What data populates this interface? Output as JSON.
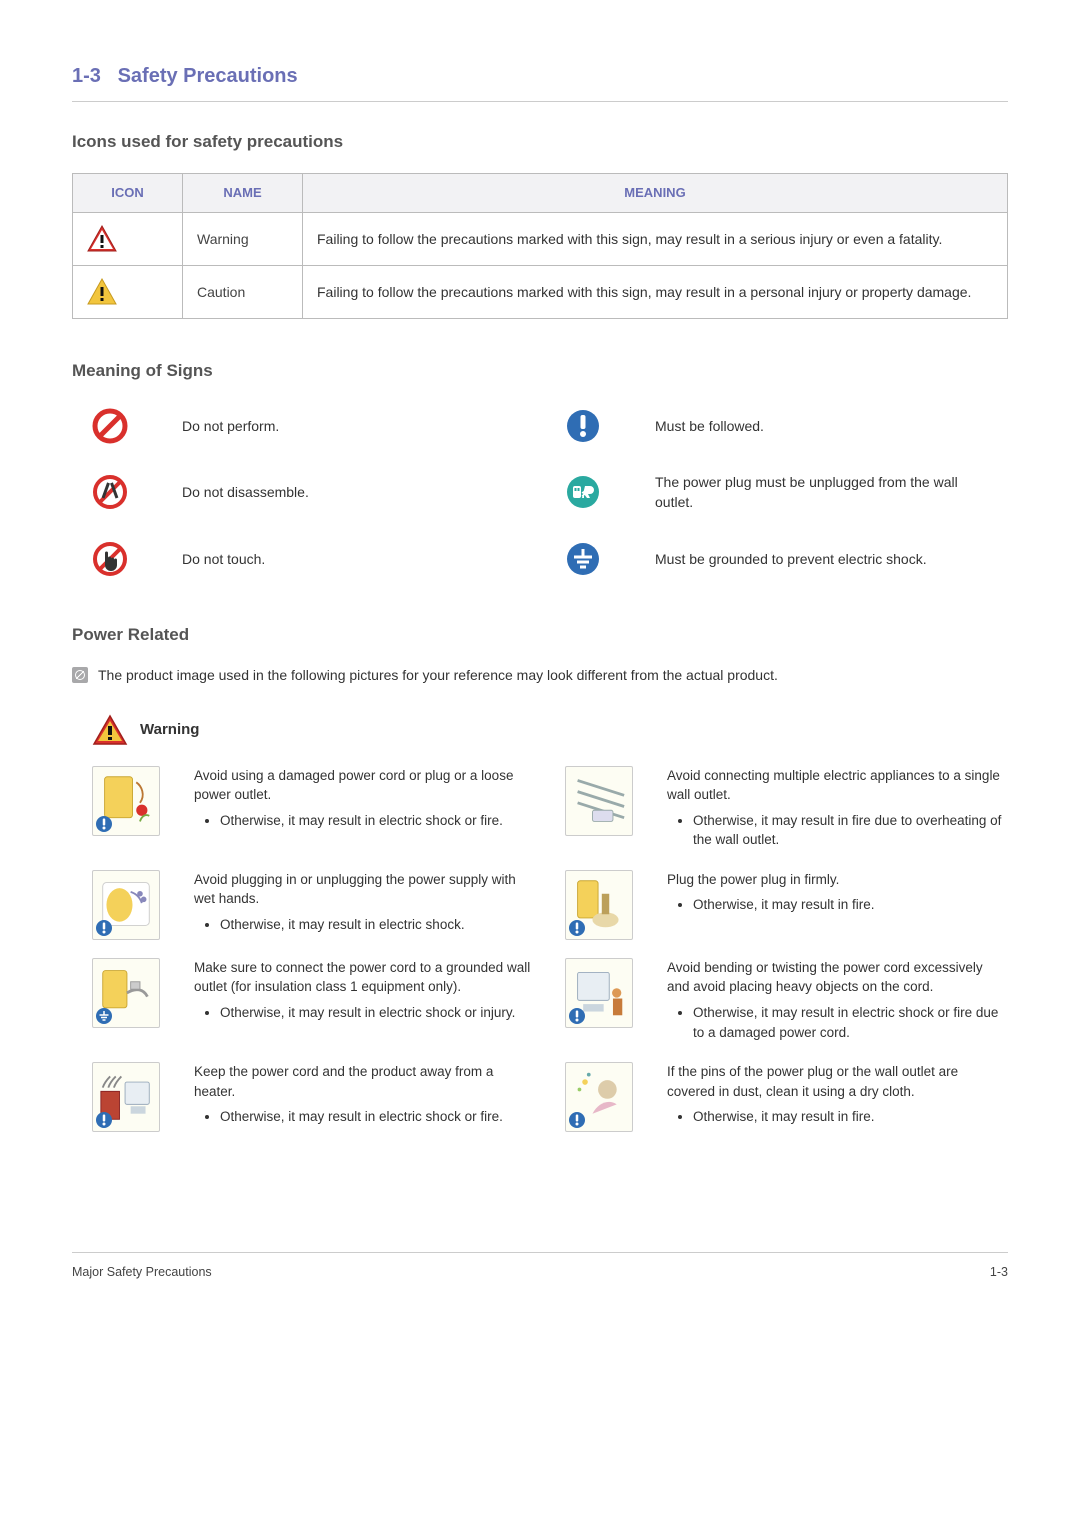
{
  "colors": {
    "heading": "#6a6fb5",
    "text": "#333333",
    "muted": "#555555",
    "border": "#bbbbbb",
    "th_bg": "#f2f2f4",
    "rule": "#cccccc",
    "warning_red": "#d9302c",
    "warning_yellow": "#f2c53d",
    "prohibit_red": "#d9302c",
    "must_blue": "#2f6db4",
    "unplug_teal": "#2aa9a0",
    "note_badge": "#a8a8aa",
    "page_bg": "#ffffff"
  },
  "page": {
    "section_number": "1-3",
    "section_title": "Safety Precautions",
    "icons_heading": "Icons used for safety precautions",
    "signs_heading": "Meaning of Signs",
    "power_heading": "Power Related",
    "note_text": "The product image used in the following pictures for your reference may look different from the actual product.",
    "warning_label": "Warning",
    "footer_left": "Major Safety Precautions",
    "footer_right": "1-3"
  },
  "table": {
    "headers": {
      "icon": "ICON",
      "name": "NAME",
      "meaning": "MEANING"
    },
    "rows": [
      {
        "icon": "warning-red",
        "name": "Warning",
        "meaning": "Failing to follow the precautions marked with this sign, may result in a serious injury or even a fatality."
      },
      {
        "icon": "warning-yellow",
        "name": "Caution",
        "meaning": "Failing to follow the precautions marked with this sign, may result in a personal injury or property damage."
      }
    ]
  },
  "signs": [
    {
      "icon": "prohibit",
      "text": "Do not perform."
    },
    {
      "icon": "must-follow",
      "text": "Must be followed."
    },
    {
      "icon": "no-disassemble",
      "text": "Do not disassemble."
    },
    {
      "icon": "unplug",
      "text": "The power plug must be unplugged from the wall outlet."
    },
    {
      "icon": "no-touch",
      "text": "Do not touch."
    },
    {
      "icon": "ground",
      "text": "Must be grounded to prevent electric shock."
    }
  ],
  "warnings": [
    {
      "badge": "must-follow",
      "main": "Avoid using a damaged power cord or plug or a loose power outlet.",
      "bullet": "Otherwise, it may result in electric shock or fire."
    },
    {
      "badge": null,
      "main": "Avoid connecting multiple electric appliances to a single wall outlet.",
      "bullet": "Otherwise, it may result in fire due to overheating of the wall outlet."
    },
    {
      "badge": "must-follow",
      "main": "Avoid plugging in or unplugging the power supply with wet hands.",
      "bullet": "Otherwise, it may result in electric shock."
    },
    {
      "badge": "must-follow",
      "main": "Plug the power plug in firmly.",
      "bullet": "Otherwise, it may result in fire."
    },
    {
      "badge": "ground",
      "main": "Make sure to connect the power cord to a grounded wall outlet (for insulation class 1 equipment only).",
      "bullet": "Otherwise, it may result in electric shock or injury."
    },
    {
      "badge": "must-follow",
      "main": "Avoid bending or twisting the power cord excessively and avoid placing heavy objects on the cord.",
      "bullet": "Otherwise, it may result in electric shock or fire due to a damaged power cord."
    },
    {
      "badge": "must-follow",
      "main": "Keep the power cord and the product away from a heater.",
      "bullet": "Otherwise, it may result in electric shock or fire."
    },
    {
      "badge": "must-follow",
      "main": "If the pins of the power plug or the wall outlet are covered in dust, clean it using a dry cloth.",
      "bullet": "Otherwise, it may result in fire."
    }
  ]
}
